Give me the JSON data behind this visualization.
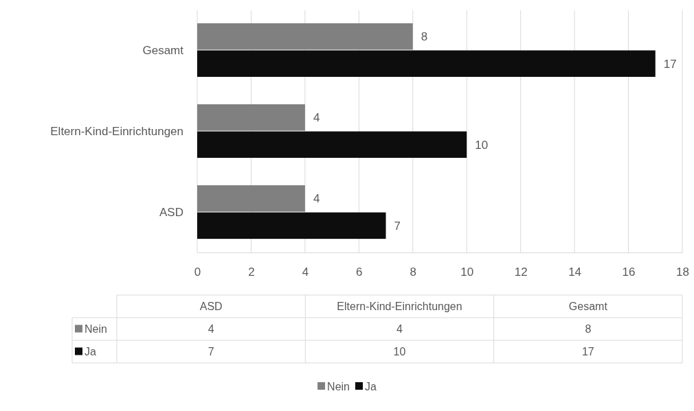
{
  "chart_data": [
    {
      "type": "bar",
      "orientation": "horizontal",
      "categories": [
        "Gesamt",
        "Eltern-Kind-Einrichtungen",
        "ASD"
      ],
      "series": [
        {
          "name": "Nein",
          "color": "#808080",
          "values": [
            8,
            4,
            4
          ]
        },
        {
          "name": "Ja",
          "color": "#0d0d0d",
          "values": [
            17,
            10,
            7
          ]
        }
      ],
      "xlim": [
        0,
        18
      ],
      "xticks": [
        0,
        2,
        4,
        6,
        8,
        10,
        12,
        14,
        16,
        18
      ],
      "grid": "x",
      "data_labels": true,
      "legend": "bottom"
    },
    {
      "type": "other",
      "data_labels": true,
      "categories": [
        "ASD",
        "Eltern-Kind-Einrichtungen",
        "Gesamt"
      ],
      "series": [
        {
          "name": "Nein",
          "color": "#808080",
          "values": [
            4,
            4,
            8
          ]
        },
        {
          "name": "Ja",
          "color": "#0d0d0d",
          "values": [
            7,
            10,
            17
          ]
        }
      ]
    }
  ]
}
